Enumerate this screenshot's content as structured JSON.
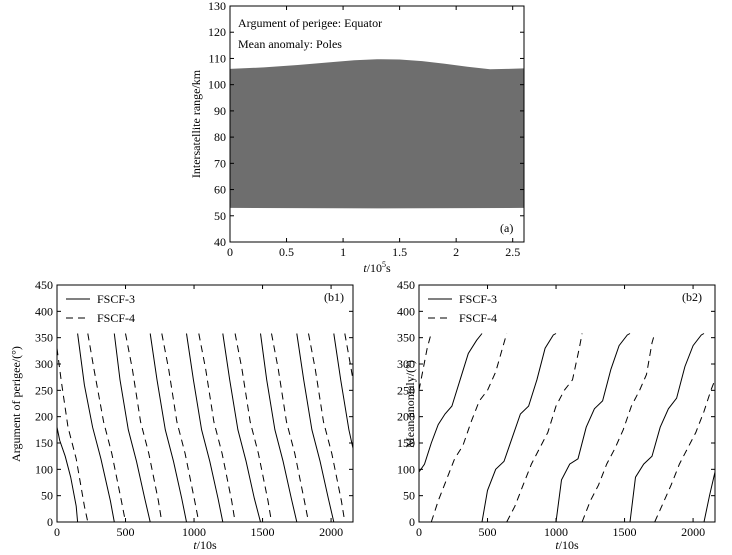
{
  "chart_data": [
    {
      "id": "a",
      "type": "area",
      "panel_label": "(a)",
      "annotations": [
        "Argument of perigee: Equator",
        "Mean anomaly: Poles"
      ],
      "xlabel_italic": "t",
      "xlabel_base": "/10",
      "xlabel_sup": "5",
      "xlabel_unit": "s",
      "ylabel": "Intersatellite range/km",
      "xlim": [
        0,
        2.6
      ],
      "ylim": [
        40,
        130
      ],
      "xticks": [
        0,
        0.5,
        1,
        1.5,
        2,
        2.5
      ],
      "xtick_labels": [
        "0",
        "0.5",
        "1",
        "1.5",
        "2",
        "2.5"
      ],
      "yticks": [
        40,
        50,
        60,
        70,
        80,
        90,
        100,
        110,
        120,
        130
      ],
      "ytick_labels": [
        "40",
        "50",
        "60",
        "70",
        "80",
        "90",
        "100",
        "110",
        "120",
        "130"
      ],
      "fill_color": "#6e6e6e",
      "upper": {
        "x": [
          0,
          0.3,
          0.6,
          0.9,
          1.1,
          1.3,
          1.5,
          1.7,
          1.9,
          2.1,
          2.3,
          2.45,
          2.6
        ],
        "y": [
          106,
          106.6,
          107.5,
          108.6,
          109.3,
          109.7,
          109.6,
          109.0,
          108.0,
          106.8,
          105.9,
          106.0,
          106.2
        ]
      },
      "lower": {
        "x": [
          0,
          1.3,
          2.6
        ],
        "y": [
          53,
          52.8,
          53
        ]
      }
    },
    {
      "id": "b1",
      "type": "line",
      "panel_label": "(b1)",
      "xlabel_italic": "t",
      "xlabel_base": "/10s",
      "ylabel": "Argument of perigee/(°)",
      "xlim": [
        0,
        2160
      ],
      "ylim": [
        0,
        450
      ],
      "xticks": [
        0,
        500,
        1000,
        1500,
        2000
      ],
      "xtick_labels": [
        "0",
        "500",
        "1000",
        "1500",
        "2000"
      ],
      "yticks": [
        0,
        50,
        100,
        150,
        200,
        250,
        300,
        350,
        400,
        450
      ],
      "ytick_labels": [
        "0",
        "50",
        "100",
        "150",
        "200",
        "250",
        "300",
        "350",
        "400",
        "450"
      ],
      "series": [
        {
          "name": "FSCF-3",
          "dash": "",
          "segments": [
            {
              "x": [
                0,
                20,
                60,
                100,
                140,
                150
              ],
              "y": [
                180,
                155,
                125,
                85,
                30,
                0
              ]
            },
            {
              "x": [
                150,
                200,
                260,
                320,
                390,
                418
              ],
              "y": [
                358,
                260,
                180,
                120,
                40,
                0
              ]
            },
            {
              "x": [
                418,
                460,
                520,
                580,
                640,
                680
              ],
              "y": [
                358,
                270,
                175,
                115,
                45,
                0
              ]
            },
            {
              "x": [
                680,
                730,
                790,
                850,
                910,
                945
              ],
              "y": [
                358,
                270,
                175,
                115,
                45,
                0
              ]
            },
            {
              "x": [
                945,
                995,
                1055,
                1115,
                1175,
                1210
              ],
              "y": [
                358,
                270,
                175,
                115,
                45,
                0
              ]
            },
            {
              "x": [
                1210,
                1260,
                1320,
                1380,
                1440,
                1485
              ],
              "y": [
                358,
                270,
                175,
                115,
                45,
                0
              ]
            },
            {
              "x": [
                1485,
                1530,
                1590,
                1650,
                1710,
                1750
              ],
              "y": [
                358,
                270,
                175,
                115,
                45,
                0
              ]
            },
            {
              "x": [
                1750,
                1800,
                1860,
                1920,
                1980,
                2020
              ],
              "y": [
                358,
                270,
                175,
                115,
                45,
                0
              ]
            },
            {
              "x": [
                2020,
                2070,
                2130,
                2160
              ],
              "y": [
                358,
                270,
                175,
                140
              ]
            }
          ]
        },
        {
          "name": "FSCF-4",
          "dash": "7,5",
          "segments": [
            {
              "x": [
                0,
                30,
                80,
                140,
                200,
                225
              ],
              "y": [
                330,
                270,
                180,
                120,
                30,
                0
              ]
            },
            {
              "x": [
                225,
                270,
                340,
                400,
                470,
                500
              ],
              "y": [
                358,
                290,
                190,
                130,
                40,
                0
              ]
            },
            {
              "x": [
                500,
                550,
                610,
                670,
                740,
                765
              ],
              "y": [
                358,
                290,
                190,
                130,
                40,
                0
              ]
            },
            {
              "x": [
                765,
                815,
                875,
                935,
                1005,
                1035
              ],
              "y": [
                358,
                290,
                190,
                130,
                40,
                0
              ]
            },
            {
              "x": [
                1035,
                1085,
                1145,
                1205,
                1275,
                1300
              ],
              "y": [
                358,
                290,
                190,
                130,
                40,
                0
              ]
            },
            {
              "x": [
                1300,
                1350,
                1410,
                1470,
                1540,
                1565
              ],
              "y": [
                358,
                290,
                190,
                130,
                40,
                0
              ]
            },
            {
              "x": [
                1565,
                1615,
                1675,
                1735,
                1805,
                1835
              ],
              "y": [
                358,
                290,
                190,
                130,
                40,
                0
              ]
            },
            {
              "x": [
                1835,
                1885,
                1945,
                2005,
                2075,
                2100
              ],
              "y": [
                358,
                290,
                190,
                130,
                40,
                0
              ]
            },
            {
              "x": [
                2100,
                2140,
                2160
              ],
              "y": [
                358,
                300,
                270
              ]
            }
          ]
        }
      ]
    },
    {
      "id": "b2",
      "type": "line",
      "panel_label": "(b2)",
      "xlabel_italic": "t",
      "xlabel_base": "/10s",
      "ylabel": "Mean anomaly/(°)",
      "xlim": [
        0,
        2160
      ],
      "ylim": [
        0,
        450
      ],
      "xticks": [
        0,
        500,
        1000,
        1500,
        2000
      ],
      "xtick_labels": [
        "0",
        "500",
        "1000",
        "1500",
        "2000"
      ],
      "yticks": [
        0,
        50,
        100,
        150,
        200,
        250,
        300,
        350,
        400,
        450
      ],
      "ytick_labels": [
        "0",
        "50",
        "100",
        "150",
        "200",
        "250",
        "300",
        "350",
        "400",
        "450"
      ],
      "series": [
        {
          "name": "FSCF-3",
          "dash": "",
          "segments": [
            {
              "x": [
                0,
                40,
                90,
                140,
                190,
                240,
                300,
                360,
                420,
                460
              ],
              "y": [
                95,
                110,
                150,
                185,
                205,
                220,
                270,
                320,
                345,
                358
              ]
            },
            {
              "x": [
                460,
                500,
                560,
                620,
                680,
                740,
                800,
                860,
                920,
                980,
                1000
              ],
              "y": [
                0,
                60,
                100,
                115,
                160,
                205,
                220,
                270,
                330,
                355,
                358
              ]
            },
            {
              "x": [
                1000,
                1040,
                1100,
                1160,
                1220,
                1280,
                1340,
                1400,
                1460,
                1520,
                1540
              ],
              "y": [
                0,
                80,
                110,
                120,
                180,
                215,
                230,
                290,
                335,
                355,
                358
              ]
            },
            {
              "x": [
                1540,
                1580,
                1640,
                1700,
                1760,
                1820,
                1880,
                1940,
                2000,
                2060,
                2080
              ],
              "y": [
                0,
                85,
                110,
                125,
                180,
                215,
                235,
                295,
                335,
                355,
                358
              ]
            },
            {
              "x": [
                2080,
                2120,
                2160
              ],
              "y": [
                0,
                50,
                95
              ]
            }
          ]
        },
        {
          "name": "FSCF-4",
          "dash": "7,5",
          "segments": [
            {
              "x": [
                0,
                30,
                60,
                80,
                90
              ],
              "y": [
                250,
                290,
                330,
                350,
                358
              ]
            },
            {
              "x": [
                90,
                140,
                200,
                260,
                320,
                380,
                440,
                500,
                560,
                620,
                640
              ],
              "y": [
                0,
                40,
                80,
                120,
                145,
                190,
                230,
                250,
                285,
                340,
                358
              ]
            },
            {
              "x": [
                640,
                700,
                760,
                820,
                880,
                940,
                1000,
                1060,
                1120,
                1170,
                1190
              ],
              "y": [
                0,
                30,
                70,
                110,
                140,
                170,
                220,
                250,
                270,
                330,
                358
              ]
            },
            {
              "x": [
                1190,
                1250,
                1310,
                1370,
                1430,
                1490,
                1550,
                1610,
                1660,
                1700,
                1720
              ],
              "y": [
                0,
                40,
                70,
                110,
                140,
                175,
                220,
                250,
                280,
                340,
                358
              ]
            },
            {
              "x": [
                1720,
                1780,
                1840,
                1900,
                1960,
                2020,
                2080,
                2130,
                2160
              ],
              "y": [
                0,
                35,
                70,
                110,
                140,
                170,
                210,
                250,
                270
              ]
            }
          ]
        }
      ]
    }
  ]
}
